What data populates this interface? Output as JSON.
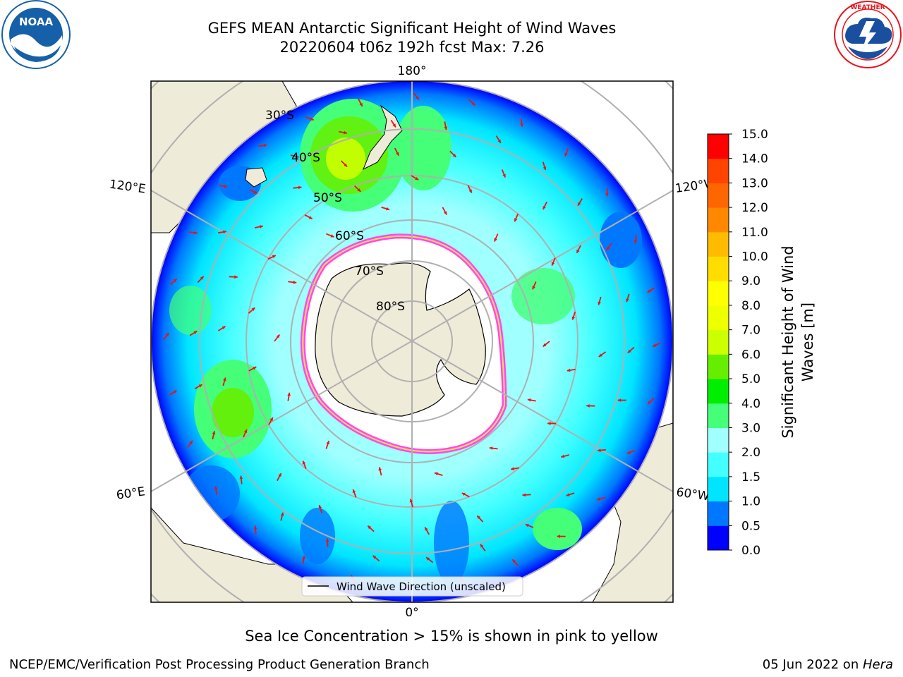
{
  "header": {
    "title_line1": "GEFS MEAN Antarctic Significant Height of Wind Waves",
    "title_line2": "20220604 t06z 192h fcst   Max: 7.26"
  },
  "logos": {
    "left": {
      "text": "NOAA",
      "ring_text": "NATIONAL OCEANIC AND ATMOSPHERIC ADMINISTRATION · U.S. DEPARTMENT OF COMMERCE",
      "color": "#1560a8"
    },
    "right": {
      "ring_text": "NATIONAL WEATHER SERVICE",
      "color": "#e8141c",
      "inner": "#1a4fa0"
    }
  },
  "map": {
    "projection": "south-polar-stereographic",
    "longitude_labels": {
      "top": "180°",
      "bottom": "0°",
      "left_upper": "120°E",
      "left_lower": "60°E",
      "right_upper": "120°W",
      "right_lower": "60°W"
    },
    "latitude_labels": [
      "30°S",
      "40°S",
      "50°S",
      "60°S",
      "70°S",
      "80°S"
    ],
    "legend": "Wind Wave Direction (unscaled)",
    "colors": {
      "land": "#efebd9",
      "ice_edge_pink": "#ff44ff",
      "ice_edge_yellow": "#ffe040",
      "arrow": "#ee1111",
      "grid": "#b0b0b0"
    }
  },
  "chart_data": {
    "type": "heatmap",
    "title": "GEFS MEAN Antarctic Significant Height of Wind Waves",
    "subtitle": "20220604 t06z 192h fcst   Max: 7.26",
    "variable": "Significant Height of Wind Waves",
    "max_value": 7.26,
    "colorbar": {
      "label": "Significant Height of Wind Waves [m]",
      "label_line1": "Significant Height of Wind",
      "label_line2": "Waves [m]",
      "range": [
        0.0,
        15.0
      ],
      "ticks": [
        "0.0",
        "0.5",
        "1.0",
        "1.5",
        "2.0",
        "3.0",
        "4.0",
        "5.0",
        "6.0",
        "7.0",
        "8.0",
        "9.0",
        "10.0",
        "11.0",
        "12.0",
        "13.0",
        "14.0",
        "15.0"
      ],
      "colors": [
        "#0000ff",
        "#0077ff",
        "#00e5ff",
        "#44ffff",
        "#a0ffff",
        "#44ff77",
        "#00ee00",
        "#66ee00",
        "#ccff00",
        "#eeff00",
        "#ffff00",
        "#ffdd00",
        "#ffbb00",
        "#ff8800",
        "#ff6600",
        "#ff4400",
        "#ff0000"
      ]
    }
  },
  "notes": {
    "sea_ice": "Sea Ice Concentration > 15% is shown in pink to yellow"
  },
  "footer": {
    "left": "NCEP/EMC/Verification Post Processing Product Generation Branch",
    "right_date": "05 Jun 2022 on ",
    "right_host": "Hera"
  }
}
